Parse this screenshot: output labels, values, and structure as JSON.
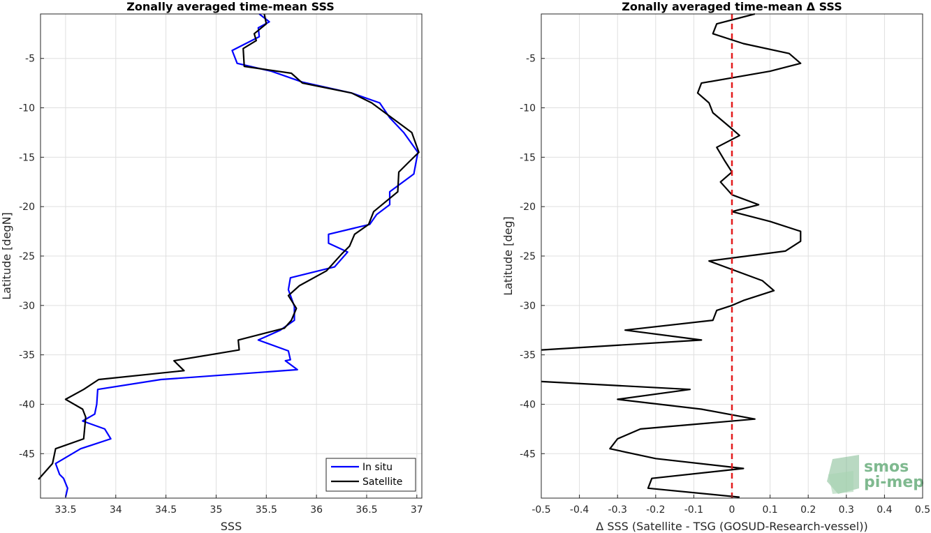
{
  "chart_data": [
    {
      "type": "line",
      "title": "Zonally averaged time-mean SSS",
      "xlabel": "SSS",
      "ylabel": "Latitude [degN]",
      "xlim": [
        33.25,
        37.05
      ],
      "ylim": [
        -49.5,
        -0.5
      ],
      "xticks": [
        33.5,
        34,
        34.5,
        35,
        35.5,
        36,
        36.5,
        37
      ],
      "xtick_labels": [
        "33.5",
        "34",
        "34.5",
        "35",
        "35.5",
        "36",
        "36.5",
        "37"
      ],
      "yticks": [
        -5,
        -10,
        -15,
        -20,
        -25,
        -30,
        -35,
        -40,
        -45
      ],
      "ytick_labels": [
        "-5",
        "-10",
        "-15",
        "-20",
        "-25",
        "-30",
        "-35",
        "-40",
        "-45"
      ],
      "grid": true,
      "legend_position": "bottom-right",
      "series": [
        {
          "name": "In situ",
          "color": "#0000ff",
          "x": [
            35.43,
            35.53,
            35.42,
            35.43,
            35.16,
            35.21,
            35.55,
            35.86,
            36.35,
            36.63,
            36.73,
            36.87,
            37.01,
            36.97,
            36.73,
            36.73,
            36.6,
            36.53,
            36.12,
            36.12,
            36.31,
            36.18,
            35.74,
            35.72,
            35.78,
            35.78,
            35.64,
            35.42,
            35.72,
            35.74,
            35.69,
            35.81,
            34.45,
            33.82,
            33.81,
            33.79,
            33.67,
            33.89,
            33.95,
            33.65,
            33.4,
            33.44,
            33.48,
            33.52,
            33.5
          ],
          "y": [
            -0.5,
            -1.3,
            -1.9,
            -2.8,
            -4.2,
            -5.5,
            -6.3,
            -7.4,
            -8.5,
            -9.5,
            -11,
            -12.5,
            -14.5,
            -16.7,
            -18.5,
            -19.8,
            -20.8,
            -21.8,
            -22.8,
            -23.7,
            -24.6,
            -26.1,
            -27.2,
            -28.4,
            -30.1,
            -31.5,
            -32.5,
            -33.5,
            -34.6,
            -35.5,
            -35.6,
            -36.5,
            -37.5,
            -38.5,
            -40.0,
            -41.0,
            -41.7,
            -42.5,
            -43.5,
            -44.5,
            -46.0,
            -47.1,
            -47.5,
            -48.5,
            -49.4
          ]
        },
        {
          "name": "Satellite",
          "color": "#000000",
          "x": [
            35.48,
            35.5,
            35.38,
            35.4,
            35.27,
            35.28,
            35.75,
            35.86,
            36.35,
            36.55,
            36.75,
            36.95,
            37.02,
            36.92,
            36.82,
            36.81,
            36.57,
            36.52,
            36.38,
            36.33,
            36.25,
            36.1,
            35.83,
            35.72,
            35.8,
            35.75,
            35.68,
            35.22,
            35.23,
            34.58,
            34.68,
            33.83,
            33.68,
            33.5,
            33.67,
            33.7,
            33.68,
            33.4,
            33.37,
            33.23
          ],
          "y": [
            -0.5,
            -1.5,
            -2.5,
            -3.2,
            -4.0,
            -5.8,
            -6.5,
            -7.5,
            -8.5,
            -9.5,
            -11,
            -12.5,
            -14.5,
            -15.5,
            -16.5,
            -18.5,
            -20.5,
            -21.8,
            -22.8,
            -24.0,
            -24.8,
            -26.5,
            -28.0,
            -29.0,
            -30.3,
            -31.5,
            -32.3,
            -33.5,
            -34.5,
            -35.6,
            -36.6,
            -37.5,
            -38.5,
            -39.5,
            -40.5,
            -41.3,
            -43.5,
            -44.5,
            -46.0,
            -47.6
          ]
        }
      ]
    },
    {
      "type": "line",
      "title": "Zonally averaged time-mean Δ SSS",
      "xlabel": "Δ SSS (Satellite - TSG (GOSUD-Research-vessel))",
      "ylabel": "Latitude [deg]",
      "xlim": [
        -0.5,
        0.5
      ],
      "ylim": [
        -49.5,
        -0.5
      ],
      "xticks": [
        -0.5,
        -0.4,
        -0.3,
        -0.2,
        -0.1,
        0,
        0.1,
        0.2,
        0.3,
        0.4,
        0.5
      ],
      "xtick_labels": [
        "-0.5",
        "-0.4",
        "-0.3",
        "-0.2",
        "-0.1",
        "0",
        "0.1",
        "0.2",
        "0.3",
        "0.4",
        "0.5"
      ],
      "yticks": [
        -5,
        -10,
        -15,
        -20,
        -25,
        -30,
        -35,
        -40,
        -45
      ],
      "ytick_labels": [
        "-5",
        "-10",
        "-15",
        "-20",
        "-25",
        "-30",
        "-35",
        "-40",
        "-45"
      ],
      "grid": true,
      "reference_line": {
        "x": 0,
        "color": "#e31a1c",
        "style": "dashed"
      },
      "series": [
        {
          "color": "#000000",
          "x": [
            0.06,
            -0.04,
            -0.05,
            0.03,
            0.15,
            0.18,
            0.1,
            -0.08,
            -0.09,
            -0.06,
            -0.05,
            -0.01,
            0.02,
            -0.04,
            -0.02,
            0,
            -0.03,
            0,
            0.07,
            0,
            0.1,
            0.18,
            0.18,
            0.14,
            -0.06,
            0.08,
            0.11,
            0.03,
            0,
            -0.04,
            -0.05,
            -0.28,
            -0.08,
            -0.5
          ],
          "y": [
            -0.5,
            -1.5,
            -2.5,
            -3.5,
            -4.5,
            -5.5,
            -6.3,
            -7.5,
            -8.5,
            -9.5,
            -10.5,
            -11.8,
            -12.8,
            -14.0,
            -15.3,
            -16.5,
            -17.5,
            -18.8,
            -19.8,
            -20.5,
            -21.5,
            -22.5,
            -23.5,
            -24.5,
            -25.5,
            -27.5,
            -28.5,
            -29.5,
            -30.0,
            -30.5,
            -31.5,
            -32.5,
            -33.5,
            -34.5
          ]
        },
        {
          "color": "#000000",
          "x": [
            -0.5,
            -0.11,
            -0.3,
            -0.08,
            0.06,
            -0.24,
            -0.3,
            -0.32,
            -0.2,
            0.03,
            -0.21,
            -0.22,
            0.02
          ],
          "y": [
            -37.7,
            -38.5,
            -39.5,
            -40.5,
            -41.5,
            -42.5,
            -43.5,
            -44.5,
            -45.5,
            -46.5,
            -47.5,
            -48.5,
            -49.4
          ]
        }
      ]
    }
  ],
  "legend": {
    "entries": [
      {
        "label": "In situ",
        "color": "#0000ff"
      },
      {
        "label": "Satellite",
        "color": "#000000"
      }
    ]
  },
  "logo": {
    "line1": "smos",
    "line2": "pi-mep",
    "color": "#7fb98f"
  }
}
